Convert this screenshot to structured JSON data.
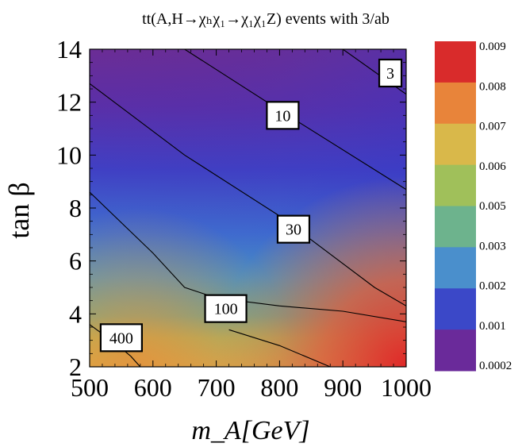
{
  "chart_data": {
    "type": "heatmap",
    "title": "tt(A,H→χₕχ₁→χ₁χ₁Z) events with 3/ab",
    "xlabel": "m_A[GeV]",
    "ylabel": "tan β",
    "xlim": [
      500,
      1000
    ],
    "ylim": [
      2,
      14
    ],
    "x_ticks": [
      500,
      600,
      700,
      800,
      900,
      1000
    ],
    "y_ticks": [
      2,
      4,
      6,
      8,
      10,
      12,
      14
    ],
    "colorbar": {
      "labels": [
        "0.009",
        "0.008",
        "0.007",
        "0.006",
        "0.005",
        "0.003",
        "0.002",
        "0.001",
        "0.0002"
      ],
      "colors": [
        "#d92b2b",
        "#e8843a",
        "#d9b84a",
        "#a0c05a",
        "#6db38d",
        "#4a8fcc",
        "#3b48c8",
        "#6a2a9a"
      ]
    },
    "contours": [
      {
        "label": "3",
        "points": [
          [
            900,
            14.0
          ],
          [
            1000,
            12.3
          ]
        ],
        "label_at": [
          975,
          13.1
        ]
      },
      {
        "label": "10",
        "points": [
          [
            650,
            14.0
          ],
          [
            800,
            11.7
          ],
          [
            1000,
            8.7
          ]
        ],
        "label_at": [
          805,
          11.5
        ]
      },
      {
        "label": "30",
        "points": [
          [
            500,
            12.7
          ],
          [
            650,
            10.0
          ],
          [
            800,
            7.7
          ],
          [
            950,
            5.0
          ],
          [
            1000,
            4.3
          ]
        ],
        "label_at": [
          822,
          7.2
        ]
      },
      {
        "label": "100",
        "points": [
          [
            500,
            8.6
          ],
          [
            600,
            6.3
          ],
          [
            650,
            5.0
          ],
          [
            700,
            4.6
          ],
          [
            800,
            4.3
          ],
          [
            900,
            4.1
          ],
          [
            1000,
            3.7
          ]
        ],
        "label_at": [
          715,
          4.2
        ]
      },
      {
        "label": "400",
        "points": [
          [
            500,
            3.6
          ],
          [
            540,
            2.9
          ],
          [
            565,
            2.4
          ],
          [
            580,
            2.0
          ]
        ],
        "label_at": [
          550,
          3.1
        ]
      },
      {
        "label": "",
        "points": [
          [
            720,
            3.4
          ],
          [
            800,
            2.8
          ],
          [
            880,
            2.0
          ]
        ],
        "label_at": null
      }
    ]
  }
}
